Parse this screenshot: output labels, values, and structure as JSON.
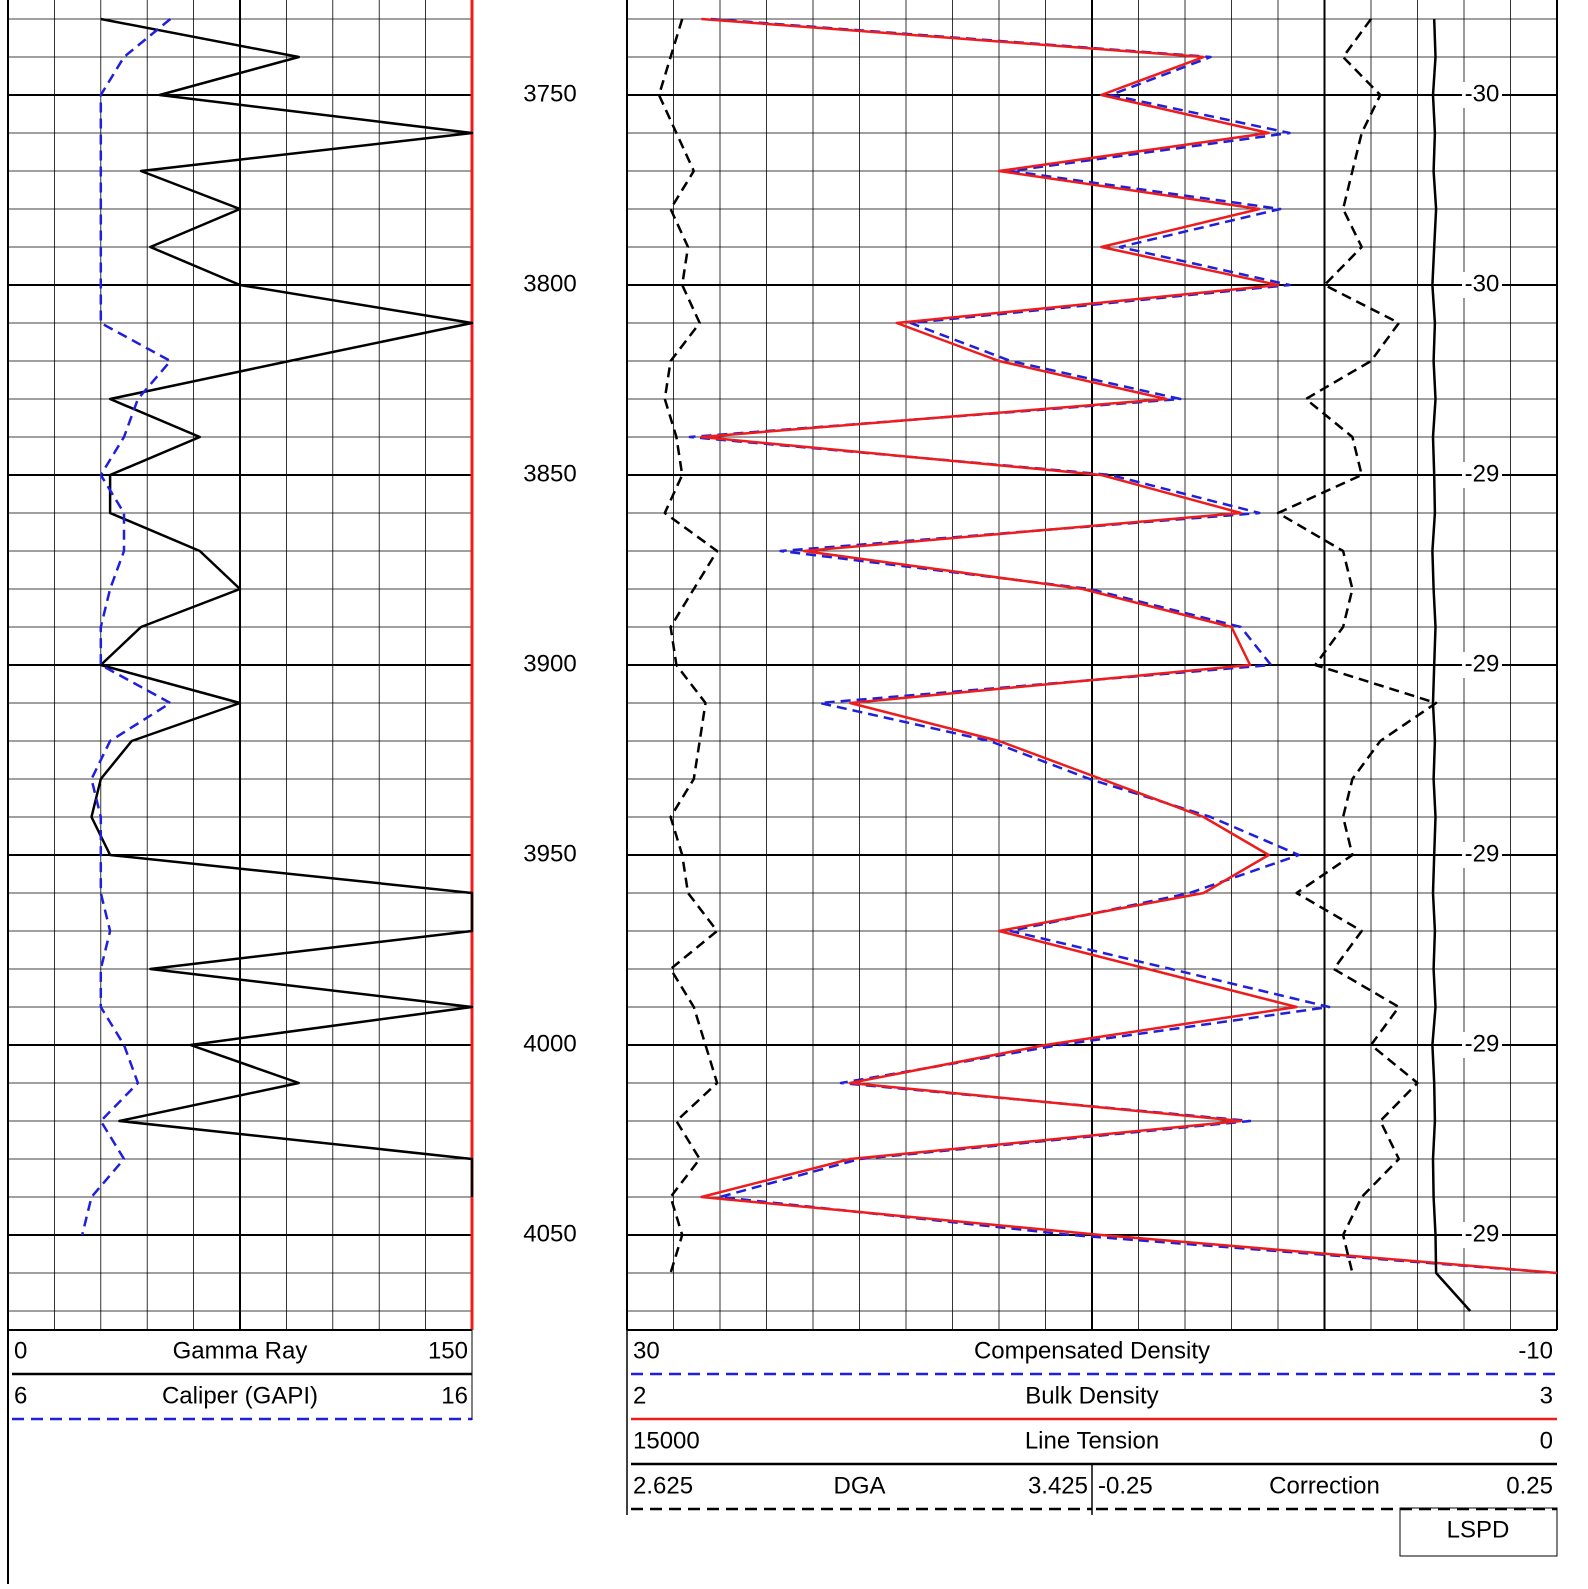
{
  "chart_data": {
    "type": "well-log",
    "ylim": [
      3725,
      4075
    ],
    "yticks": [
      3750,
      3800,
      3850,
      3900,
      3950,
      4000,
      4050
    ],
    "depth": [
      3730,
      3740,
      3750,
      3760,
      3770,
      3780,
      3790,
      3800,
      3810,
      3820,
      3830,
      3840,
      3850,
      3860,
      3870,
      3880,
      3890,
      3900,
      3910,
      3920,
      3930,
      3940,
      3950,
      3960,
      3970,
      3980,
      3990,
      4000,
      4010,
      4020,
      4030,
      4040,
      4050,
      4060,
      4070
    ],
    "annotations": [
      -30,
      -30,
      -29,
      -29,
      -29,
      -29,
      -29
    ],
    "footer_label": "LSPD",
    "tracks": [
      {
        "curves": [
          {
            "name": "Gamma Ray",
            "color": "#000000",
            "style": "solid",
            "xlim": [
              0,
              150
            ],
            "values": [
              30,
              94,
              49,
              150,
              43,
              75,
              46,
              75,
              150,
              91,
              33,
              62,
              33,
              33,
              62,
              75,
              43,
              30,
              75,
              40,
              30,
              27,
              33,
              150,
              150,
              46,
              150,
              59,
              94,
              36,
              150,
              150,
              null,
              null,
              null
            ]
          },
          {
            "name": "Caliper (GAPI)",
            "color": "#1f1fdc",
            "style": "dashed",
            "xlim": [
              6,
              16
            ],
            "values": [
              9.5,
              8.5,
              8,
              8,
              8,
              8,
              8,
              8,
              8,
              9.5,
              8.8,
              8.5,
              8,
              8.5,
              8.5,
              8.2,
              8,
              8,
              9.5,
              8.2,
              7.8,
              8,
              8,
              8,
              8.2,
              8,
              8,
              8.5,
              8.8,
              8,
              8.5,
              7.8,
              7.6,
              null,
              null
            ]
          }
        ]
      },
      {
        "curves": [
          {
            "name": "Compensated Density",
            "color": "#1f1fdc",
            "style": "dashed",
            "xlim": [
              30,
              -10
            ],
            "values": [
              26.4,
              4.9,
              9.2,
              1.5,
              13.5,
              1.9,
              8.8,
              1.5,
              17.8,
              13.5,
              6.2,
              27.3,
              9.2,
              2.8,
              23.4,
              10.1,
              3.6,
              2.3,
              21.7,
              14.4,
              10.1,
              4.9,
              1.1,
              5.8,
              13.5,
              6.6,
              -0.2,
              11.4,
              20.8,
              3.2,
              20,
              26,
              10.9,
              -10,
              null
            ]
          },
          {
            "name": "Bulk Density",
            "color": "#ee1c1c",
            "style": "solid",
            "xlim": [
              2,
              3
            ],
            "values": [
              2.08,
              2.62,
              2.51,
              2.69,
              2.4,
              2.68,
              2.51,
              2.7,
              2.29,
              2.4,
              2.58,
              2.08,
              2.51,
              2.66,
              2.19,
              2.49,
              2.65,
              2.67,
              2.24,
              2.4,
              2.51,
              2.62,
              2.69,
              2.62,
              2.4,
              2.56,
              2.72,
              2.45,
              2.24,
              2.66,
              2.24,
              2.08,
              2.51,
              3,
              null
            ]
          },
          {
            "name": "Line Tension",
            "color": "#000000",
            "style": "solid",
            "xlim": [
              15000,
              0
            ],
            "values": [
              1980,
              1960,
              2000,
              1970,
              1990,
              1950,
              1980,
              2010,
              1970,
              1990,
              1960,
              2000,
              1980,
              1970,
              2010,
              1990,
              1960,
              1980,
              2000,
              1970,
              1990,
              1960,
              1980,
              2000,
              1970,
              1990,
              1960,
              2010,
              1980,
              1970,
              2000,
              1990,
              1960,
              1950,
              1400
            ]
          },
          {
            "name": "DGA",
            "color": "#000000",
            "style": "dashed",
            "xlim": [
              2.625,
              3.425
            ],
            "values": [
              2.72,
              2.7,
              2.68,
              2.71,
              2.74,
              2.7,
              2.73,
              2.72,
              2.75,
              2.7,
              2.69,
              2.71,
              2.72,
              2.69,
              2.78,
              2.74,
              2.7,
              2.71,
              2.76,
              2.75,
              2.74,
              2.7,
              2.72,
              2.73,
              2.78,
              2.7,
              2.74,
              2.76,
              2.78,
              2.71,
              2.75,
              2.7,
              2.72,
              2.7,
              null
            ]
          },
          {
            "name": "Correction",
            "color": "#000000",
            "style": "dashed",
            "xlim": [
              -0.25,
              0.25
            ],
            "values": [
              0.05,
              0.02,
              0.06,
              0.04,
              0.03,
              0.02,
              0.04,
              0,
              0.08,
              0.05,
              -0.02,
              0.03,
              0.04,
              -0.05,
              0.02,
              0.03,
              0.02,
              -0.01,
              0.12,
              0.06,
              0.03,
              0.02,
              0.03,
              -0.03,
              0.04,
              0.01,
              0.08,
              0.05,
              0.1,
              0.06,
              0.08,
              0.04,
              0.02,
              0.03,
              null
            ]
          }
        ]
      }
    ]
  }
}
